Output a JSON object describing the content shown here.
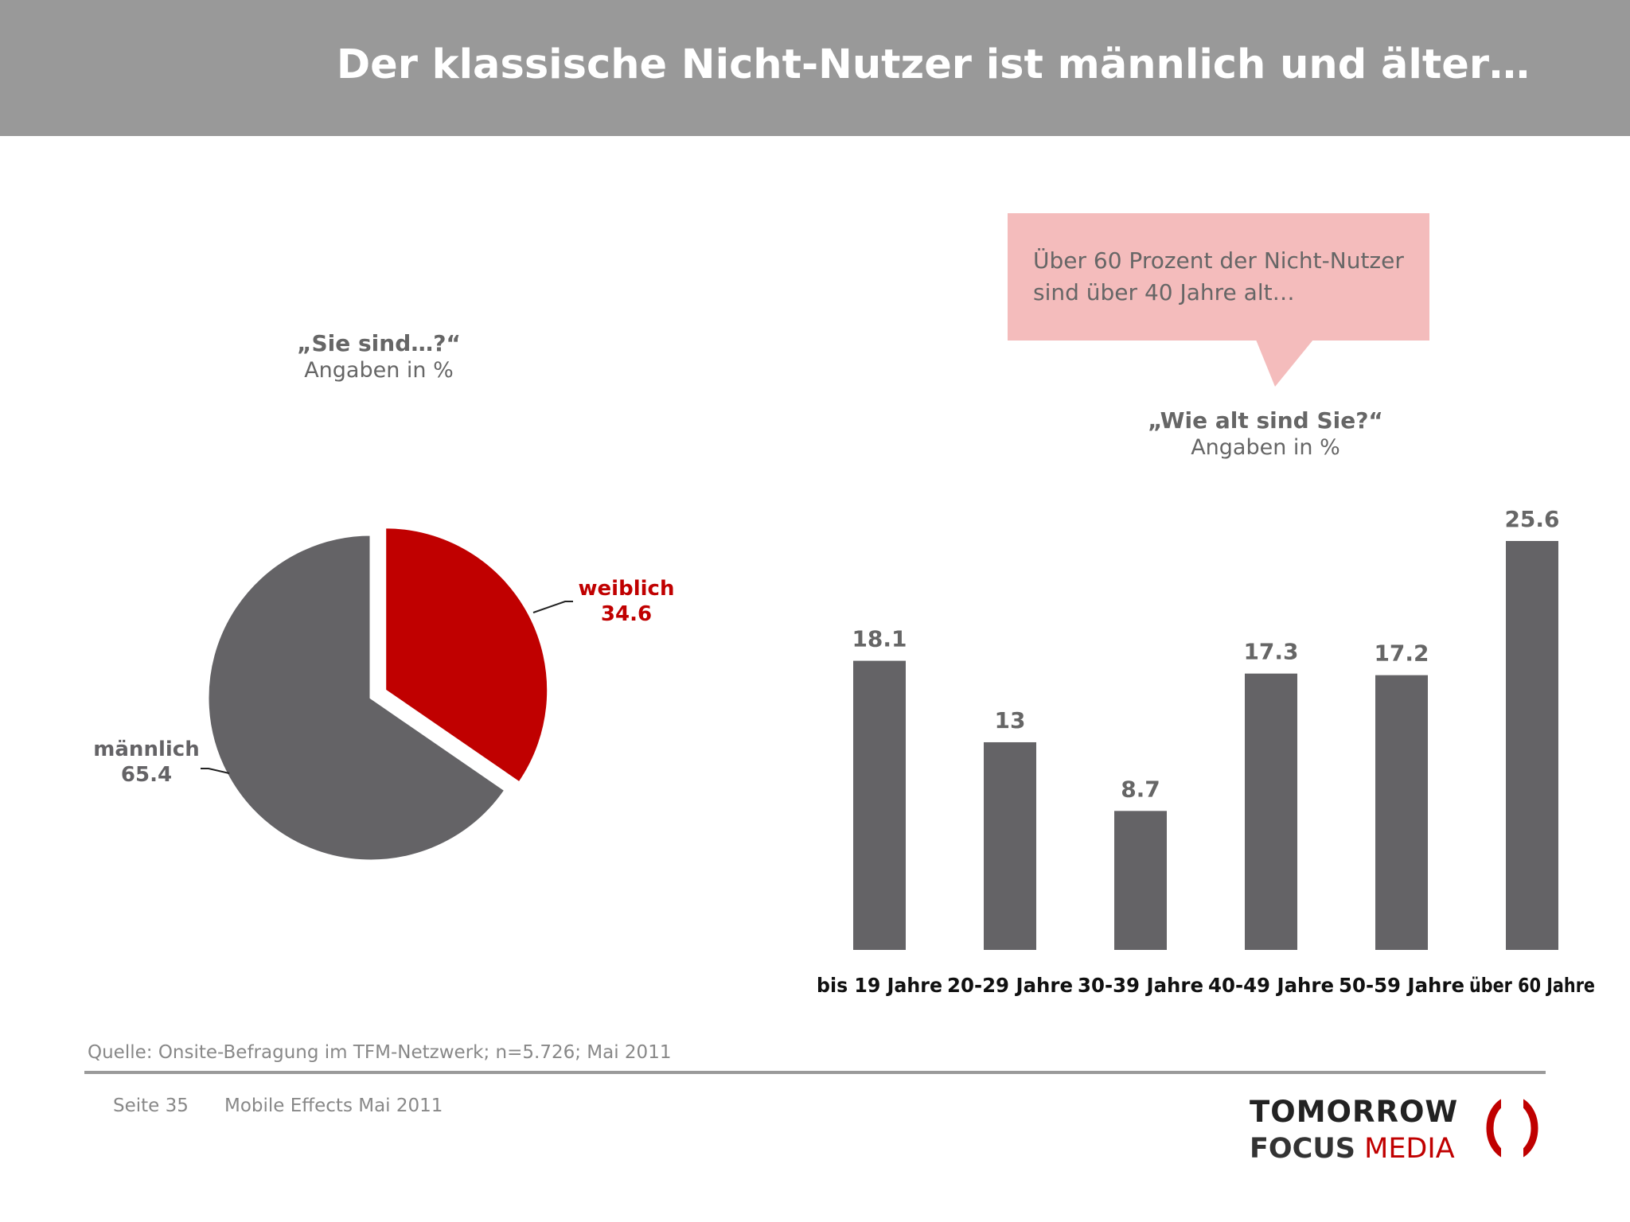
{
  "slide": {
    "title": "Der klassische Nicht-Nutzer ist männlich und älter…",
    "source": "Quelle: Onsite-Befragung im TFM-Netzwerk; n=5.726; Mai 2011",
    "footer_page": "Seite 35",
    "footer_doc": "Mobile Effects Mai 2011",
    "logo_line1": "TOMORROW",
    "logo_line2a": "FOCUS",
    "logo_line2b": "MEDIA"
  },
  "callout": {
    "text": "Über 60 Prozent der Nicht-Nutzer sind über 40 Jahre alt…",
    "color": "#f4bcbc"
  },
  "colors": {
    "header": "#999999",
    "gray_series": "#646366",
    "red_series": "#c00000",
    "text_gray": "#666666"
  },
  "chart_data": [
    {
      "type": "pie",
      "question": "„Sie sind…?“",
      "unit": "Angaben in %",
      "slices": [
        {
          "label": "weiblich",
          "value": 34.6,
          "color": "#c00000",
          "exploded": true
        },
        {
          "label": "männlich",
          "value": 65.4,
          "color": "#646366",
          "exploded": false
        }
      ]
    },
    {
      "type": "bar",
      "question": "„Wie alt sind Sie?“",
      "unit": "Angaben in %",
      "categories": [
        "bis 19 Jahre",
        "20-29 Jahre",
        "30-39 Jahre",
        "40-49 Jahre",
        "50-59 Jahre",
        "über 60 Jahre"
      ],
      "values": [
        18.1,
        13,
        8.7,
        17.3,
        17.2,
        25.6
      ],
      "value_labels": [
        "18.1",
        "13",
        "8.7",
        "17.3",
        "17.2",
        "25.6"
      ],
      "color": "#646366",
      "ylim": [
        0,
        25.6
      ],
      "grid": false
    }
  ]
}
